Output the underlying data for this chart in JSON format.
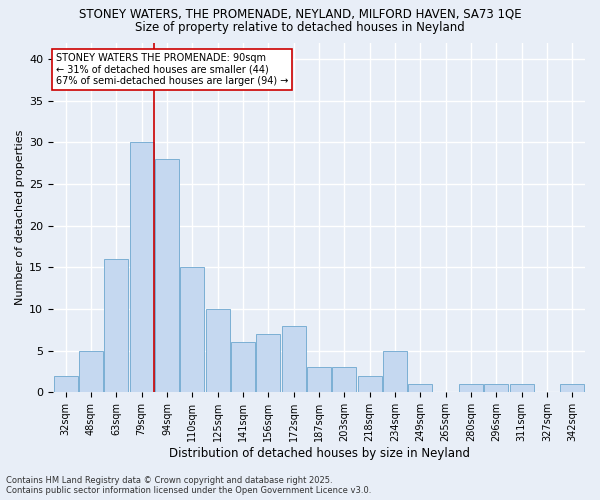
{
  "title1": "STONEY WATERS, THE PROMENADE, NEYLAND, MILFORD HAVEN, SA73 1QE",
  "title2": "Size of property relative to detached houses in Neyland",
  "xlabel": "Distribution of detached houses by size in Neyland",
  "ylabel": "Number of detached properties",
  "footnote": "Contains HM Land Registry data © Crown copyright and database right 2025.\nContains public sector information licensed under the Open Government Licence v3.0.",
  "categories": [
    "32sqm",
    "48sqm",
    "63sqm",
    "79sqm",
    "94sqm",
    "110sqm",
    "125sqm",
    "141sqm",
    "156sqm",
    "172sqm",
    "187sqm",
    "203sqm",
    "218sqm",
    "234sqm",
    "249sqm",
    "265sqm",
    "280sqm",
    "296sqm",
    "311sqm",
    "327sqm",
    "342sqm"
  ],
  "values": [
    2,
    5,
    16,
    30,
    28,
    15,
    10,
    6,
    7,
    8,
    3,
    3,
    2,
    5,
    1,
    0,
    1,
    1,
    1,
    0,
    1
  ],
  "bar_color": "#c5d8f0",
  "bar_edge_color": "#7bafd4",
  "background_color": "#e8eef7",
  "grid_color": "#ffffff",
  "vline_color": "#cc0000",
  "annotation_text": "STONEY WATERS THE PROMENADE: 90sqm\n← 31% of detached houses are smaller (44)\n67% of semi-detached houses are larger (94) →",
  "annotation_box_color": "#ffffff",
  "annotation_box_edge": "#cc0000",
  "ylim": [
    0,
    42
  ],
  "yticks": [
    0,
    5,
    10,
    15,
    20,
    25,
    30,
    35,
    40
  ]
}
